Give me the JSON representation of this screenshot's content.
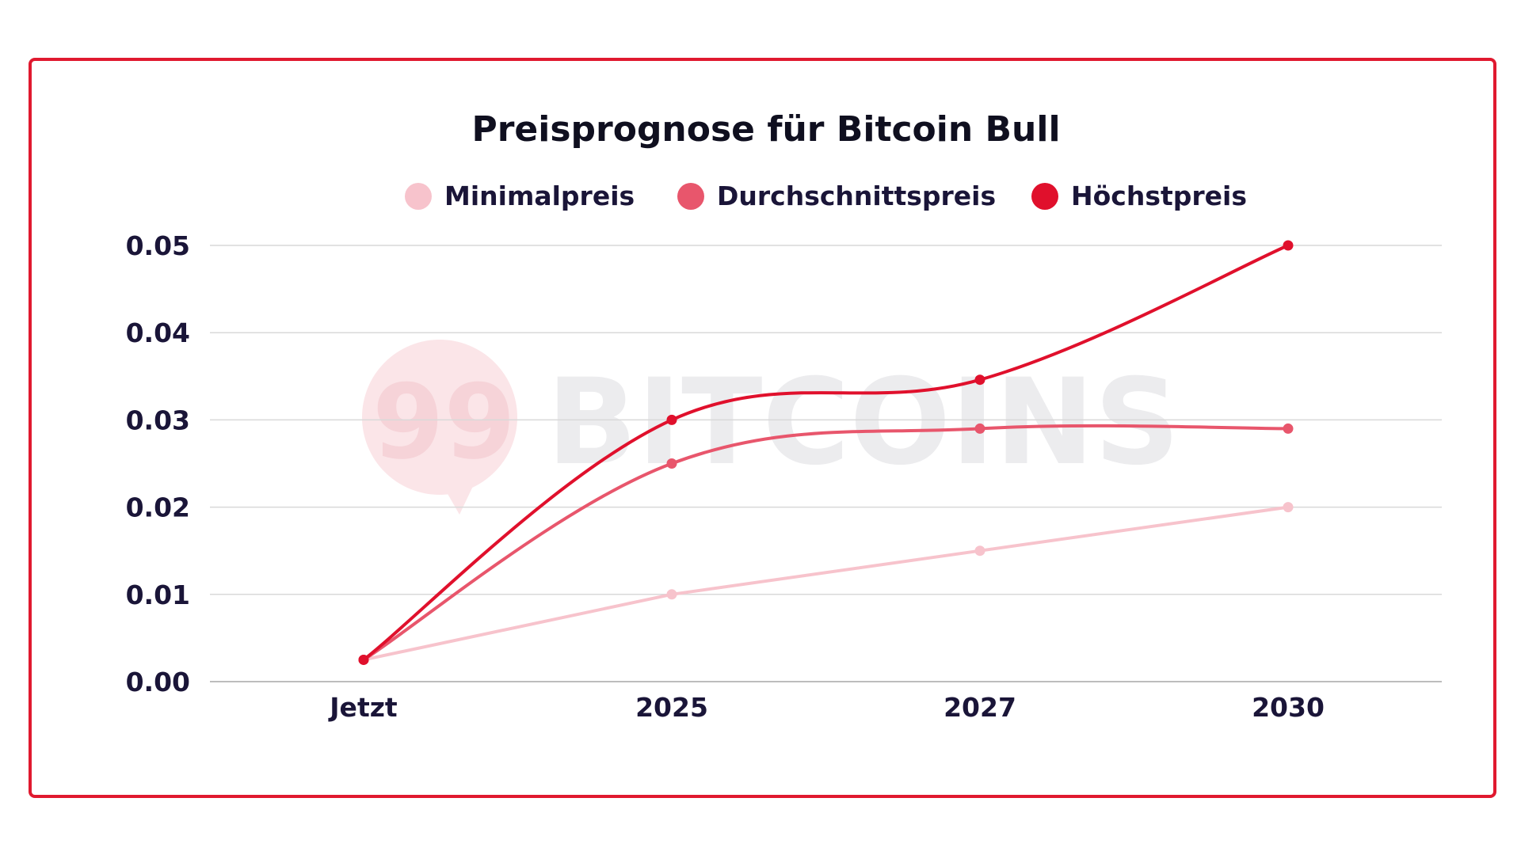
{
  "chart_data": {
    "type": "line",
    "title": "Preisprognose für Bitcoin Bull",
    "categories": [
      "Jetzt",
      "2025",
      "2027",
      "2030"
    ],
    "series": [
      {
        "name": "Minimalpreis",
        "color": "#f7c3cc",
        "values": [
          0.0025,
          0.01,
          0.015,
          0.02
        ]
      },
      {
        "name": "Durchschnittspreis",
        "color": "#e8566c",
        "values": [
          0.0025,
          0.025,
          0.029,
          0.029
        ]
      },
      {
        "name": "Höchstpreis",
        "color": "#e0102c",
        "values": [
          0.0025,
          0.03,
          0.0346,
          0.05
        ]
      }
    ],
    "yticks": [
      "0.00",
      "0.01",
      "0.02",
      "0.03",
      "0.04",
      "0.05"
    ],
    "ylim": [
      0,
      0.05
    ],
    "grid": true,
    "legend": "top-center",
    "watermark": {
      "number": "99",
      "text": "BITCOINS"
    }
  },
  "colors": {
    "frame": "#e0192f",
    "text": "#1a1538"
  }
}
